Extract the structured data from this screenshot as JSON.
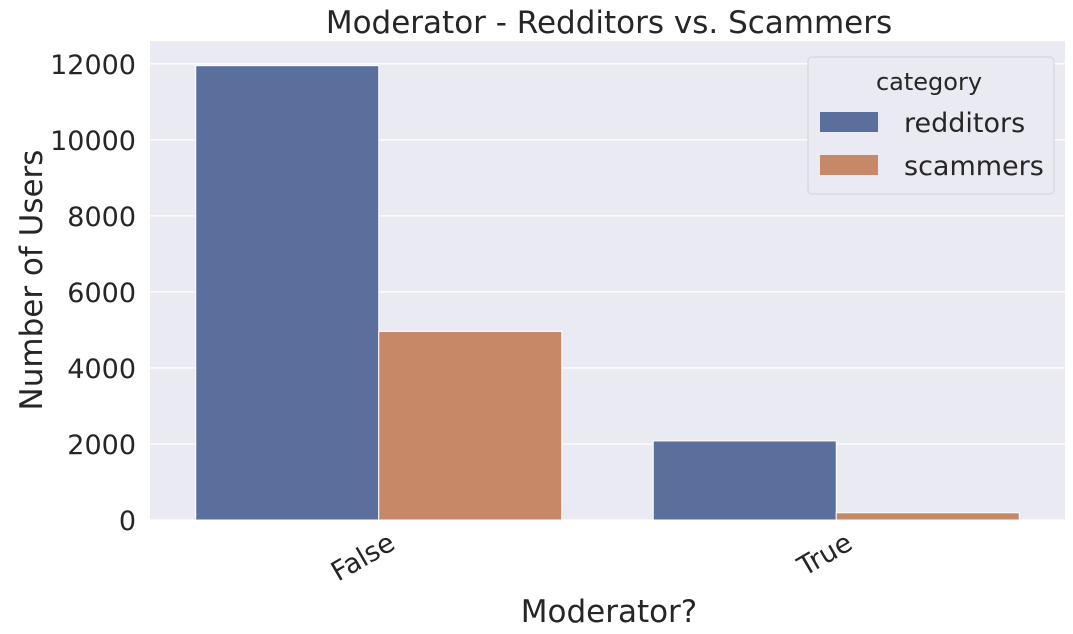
{
  "chart_data": {
    "type": "bar",
    "title": "Moderator - Redditors vs. Scammers",
    "xlabel": "Moderator?",
    "ylabel": "Number of Users",
    "categories": [
      "False",
      "True"
    ],
    "series": [
      {
        "name": "redditors",
        "color": "#5b6f9c",
        "values": [
          11950,
          2080
        ]
      },
      {
        "name": "scammers",
        "color": "#c68866",
        "values": [
          4960,
          190
        ]
      }
    ],
    "ylim": [
      0,
      12600
    ],
    "yticks": [
      0,
      2000,
      4000,
      6000,
      8000,
      10000,
      12000
    ],
    "grid": true,
    "legend": {
      "title": "category",
      "placement": "top-right"
    },
    "background": "#eaeaf2"
  }
}
